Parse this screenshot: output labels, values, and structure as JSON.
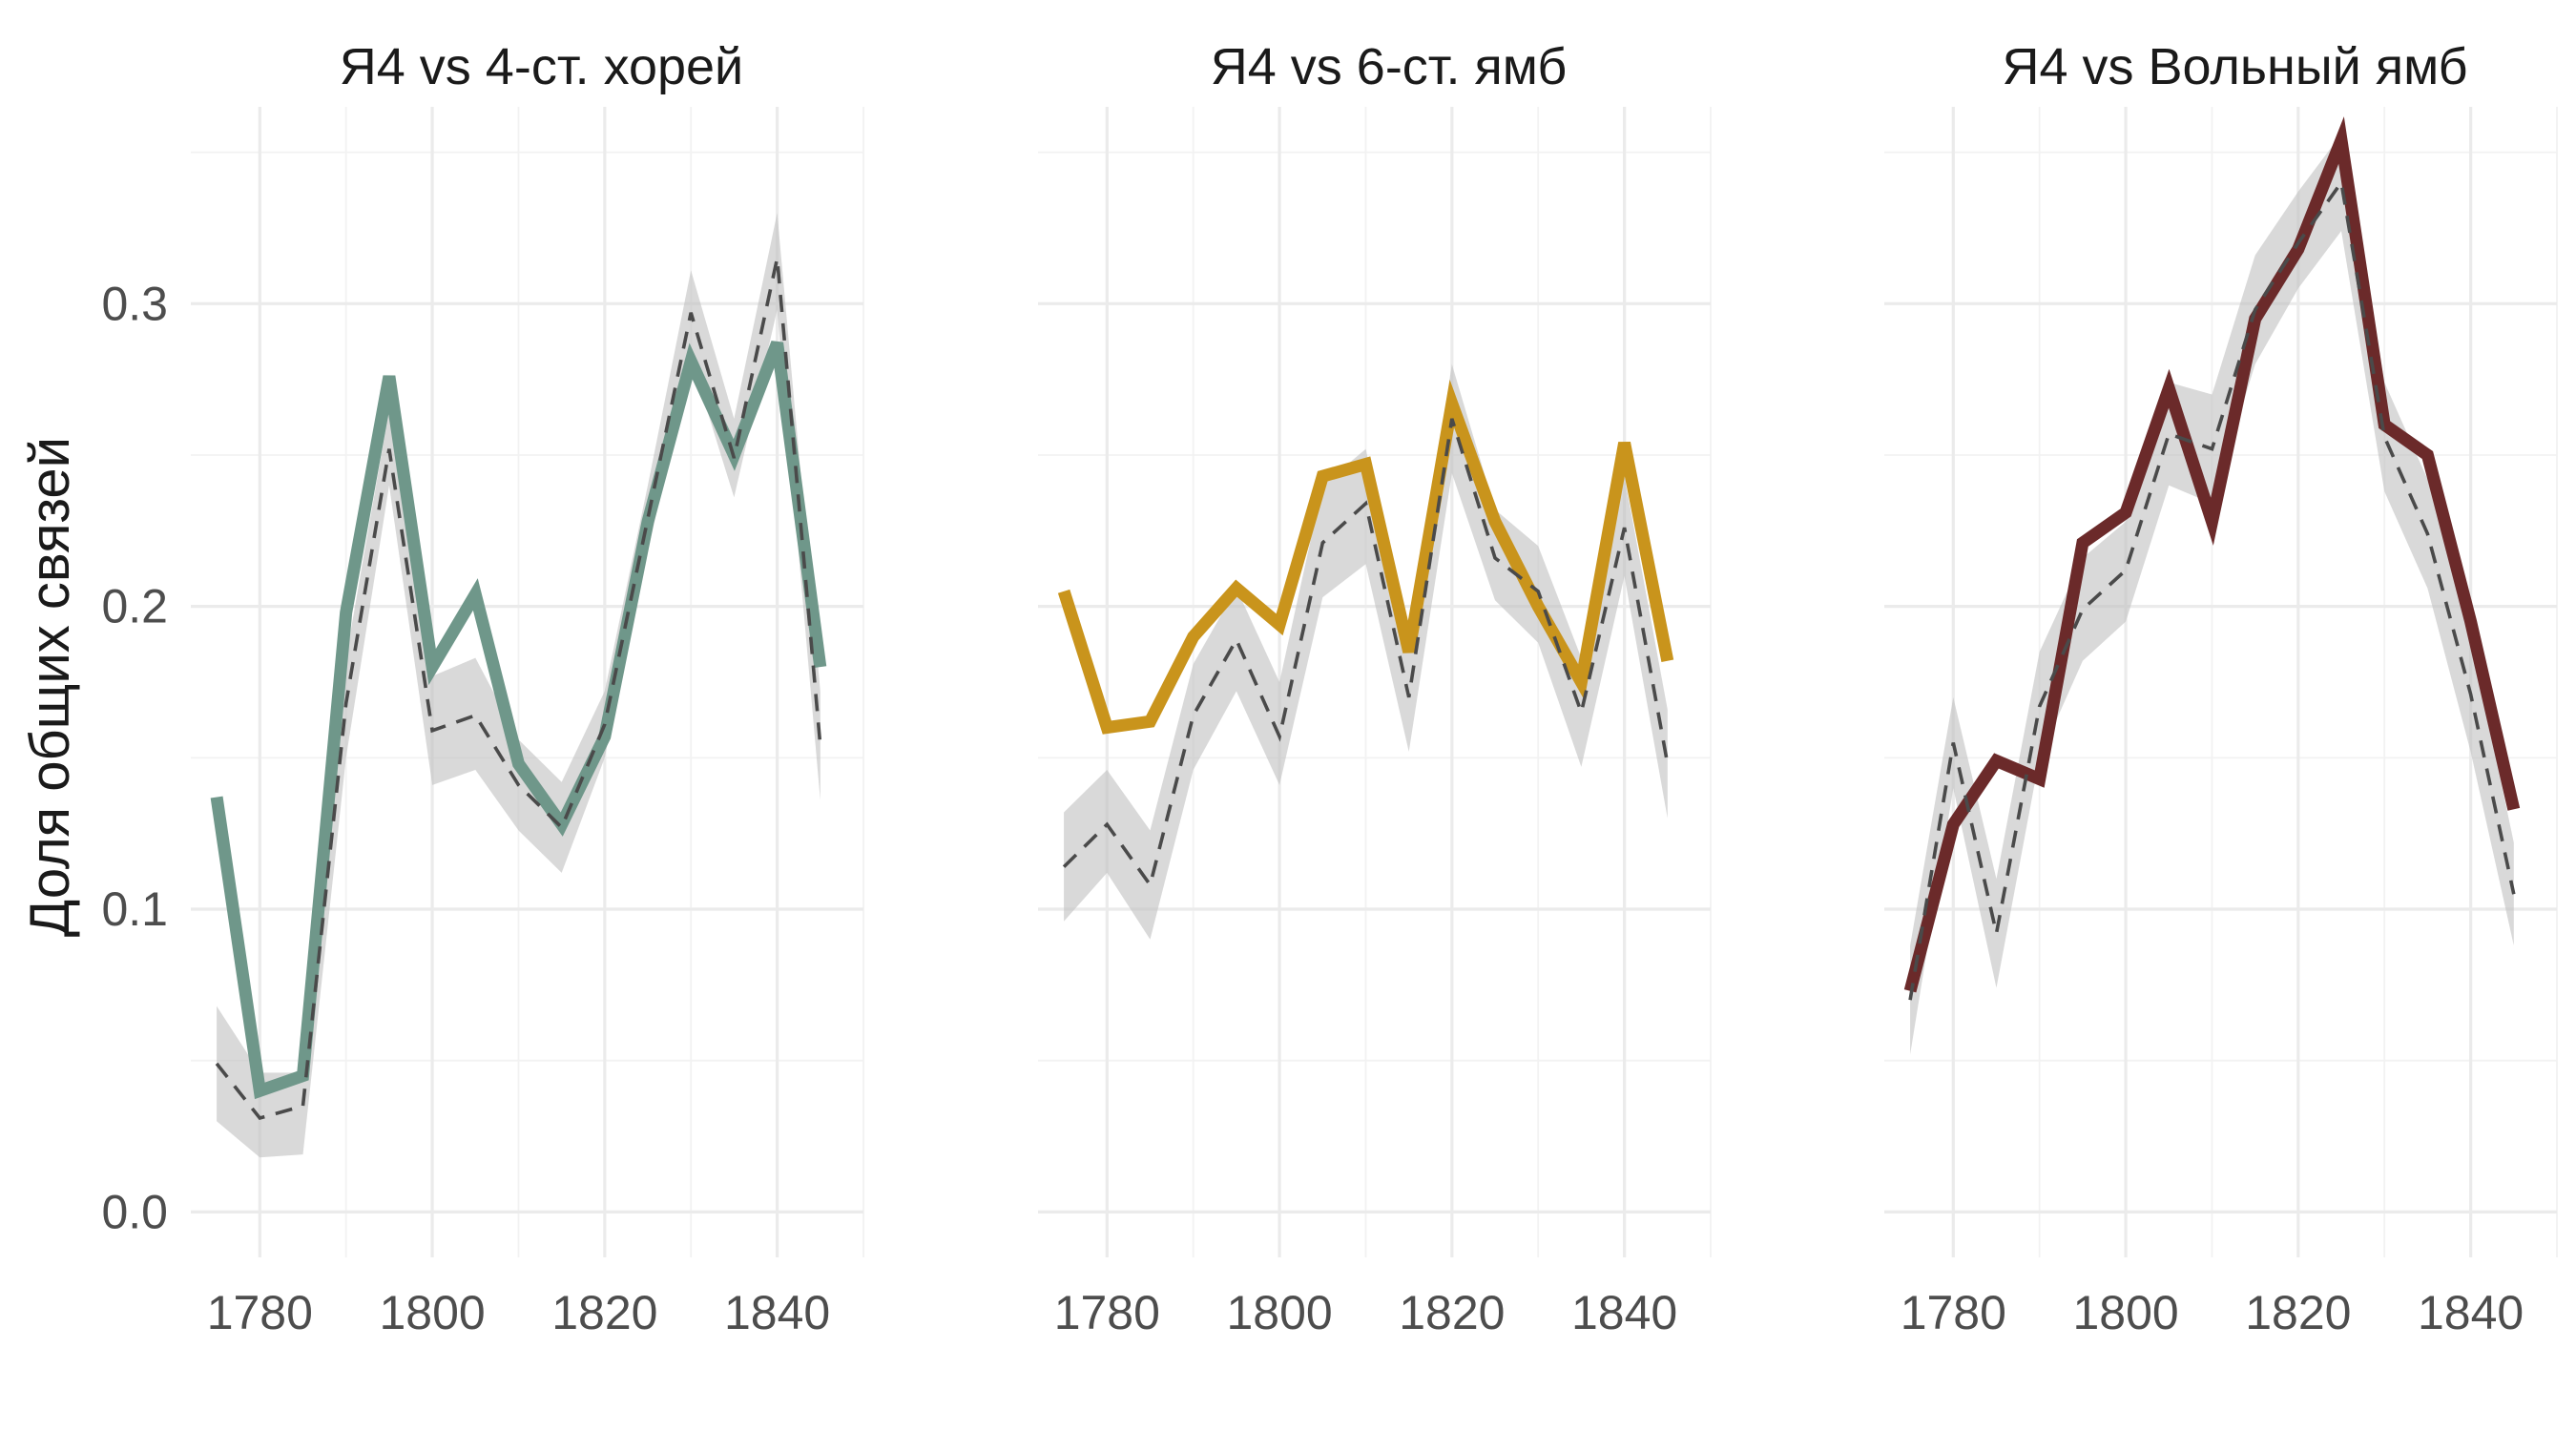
{
  "chart_data": {
    "type": "line",
    "ylabel": "Доля общих связей",
    "xlabel": "",
    "x_ticks": [
      1780,
      1800,
      1820,
      1840
    ],
    "y_ticks": [
      0.0,
      0.1,
      0.2,
      0.3
    ],
    "y_tick_labels": [
      "0.0",
      "0.1",
      "0.2",
      "0.3"
    ],
    "xlim": [
      1772,
      1850
    ],
    "ylim": [
      -0.015,
      0.365
    ],
    "grid": true,
    "legend": "none",
    "baseline_style": "dashed dark grey line with light grey confidence band",
    "panels": [
      {
        "title": "Я4 vs 4-ст. хорей",
        "color": "#6f978a",
        "x": [
          1775,
          1780,
          1785,
          1790,
          1795,
          1800,
          1805,
          1810,
          1815,
          1820,
          1825,
          1830,
          1835,
          1840,
          1845
        ],
        "observed": [
          0.137,
          0.04,
          0.045,
          0.198,
          0.276,
          0.18,
          0.204,
          0.148,
          0.128,
          0.157,
          0.228,
          0.281,
          0.25,
          0.287,
          0.18
        ],
        "expected": [
          0.049,
          0.031,
          0.035,
          0.168,
          0.252,
          0.159,
          0.164,
          0.141,
          0.127,
          0.161,
          0.229,
          0.297,
          0.249,
          0.315,
          0.154
        ],
        "band_low": [
          0.03,
          0.018,
          0.019,
          0.15,
          0.24,
          0.141,
          0.146,
          0.126,
          0.112,
          0.15,
          0.218,
          0.282,
          0.236,
          0.298,
          0.136
        ],
        "band_high": [
          0.068,
          0.046,
          0.046,
          0.183,
          0.265,
          0.177,
          0.183,
          0.156,
          0.142,
          0.172,
          0.24,
          0.311,
          0.262,
          0.33,
          0.172
        ]
      },
      {
        "title": "Я4 vs 6-ст. ямб",
        "color": "#c9941c",
        "x": [
          1775,
          1780,
          1785,
          1790,
          1795,
          1800,
          1805,
          1810,
          1815,
          1820,
          1825,
          1830,
          1835,
          1840,
          1845
        ],
        "observed": [
          0.205,
          0.16,
          0.162,
          0.19,
          0.206,
          0.194,
          0.243,
          0.247,
          0.185,
          0.267,
          0.228,
          0.2,
          0.175,
          0.254,
          0.182
        ],
        "expected": [
          0.114,
          0.128,
          0.108,
          0.164,
          0.189,
          0.157,
          0.221,
          0.234,
          0.17,
          0.262,
          0.216,
          0.205,
          0.165,
          0.226,
          0.148
        ],
        "band_low": [
          0.096,
          0.112,
          0.09,
          0.146,
          0.172,
          0.141,
          0.203,
          0.214,
          0.152,
          0.244,
          0.202,
          0.188,
          0.147,
          0.21,
          0.13
        ],
        "band_high": [
          0.132,
          0.146,
          0.126,
          0.181,
          0.206,
          0.175,
          0.24,
          0.252,
          0.188,
          0.28,
          0.232,
          0.22,
          0.183,
          0.243,
          0.166
        ]
      },
      {
        "title": "Я4 vs Вольный ямб",
        "color": "#6b2a2a",
        "x": [
          1775,
          1780,
          1785,
          1790,
          1795,
          1800,
          1805,
          1810,
          1815,
          1820,
          1825,
          1830,
          1835,
          1840,
          1845
        ],
        "observed": [
          0.073,
          0.128,
          0.149,
          0.143,
          0.221,
          0.231,
          0.272,
          0.228,
          0.295,
          0.318,
          0.354,
          0.26,
          0.25,
          0.195,
          0.133
        ],
        "expected": [
          0.07,
          0.155,
          0.092,
          0.167,
          0.199,
          0.212,
          0.257,
          0.252,
          0.298,
          0.32,
          0.34,
          0.256,
          0.224,
          0.171,
          0.105
        ],
        "band_low": [
          0.052,
          0.14,
          0.074,
          0.15,
          0.182,
          0.195,
          0.24,
          0.234,
          0.28,
          0.305,
          0.324,
          0.238,
          0.206,
          0.152,
          0.088
        ],
        "band_high": [
          0.088,
          0.17,
          0.11,
          0.185,
          0.216,
          0.228,
          0.274,
          0.27,
          0.316,
          0.337,
          0.356,
          0.274,
          0.242,
          0.19,
          0.122
        ]
      }
    ]
  }
}
